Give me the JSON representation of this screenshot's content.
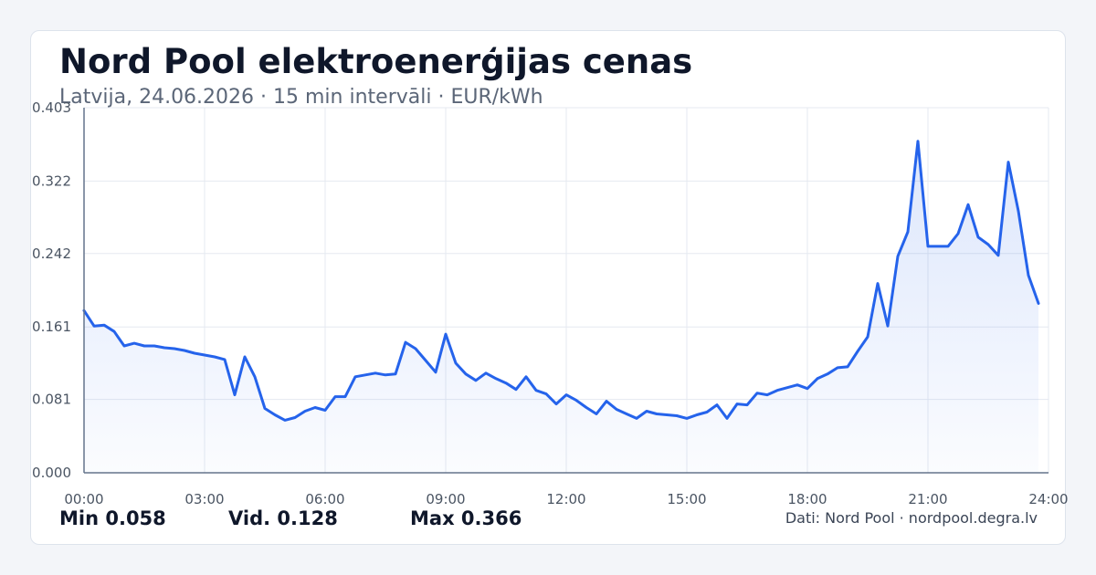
{
  "title": "Nord Pool elektroenerģijas cenas",
  "subtitle": "Latvija, 24.06.2026 · 15 min intervāli · EUR/kWh",
  "stats": {
    "min": "Min 0.058",
    "avg": "Vid. 0.128",
    "max": "Max 0.366"
  },
  "source": "Dati: Nord Pool · nordpool.degra.lv",
  "colors": {
    "line": "#2563eb",
    "fill_top": "#2563eb",
    "grid": "#e5e9f0",
    "axis": "#64748b",
    "tick_text": "#4b5563"
  },
  "chart_data": {
    "type": "area",
    "xlabel": "",
    "ylabel": "",
    "grid": true,
    "xlim": [
      0,
      24
    ],
    "ylim": [
      0,
      0.403
    ],
    "x_ticks": [
      0,
      3,
      6,
      9,
      12,
      15,
      18,
      21,
      24
    ],
    "x_tick_labels": [
      "00:00",
      "03:00",
      "06:00",
      "09:00",
      "12:00",
      "15:00",
      "18:00",
      "21:00",
      "24:00"
    ],
    "y_ticks": [
      0,
      0.081,
      0.161,
      0.242,
      0.322,
      0.403
    ],
    "y_tick_labels": [
      "0.000",
      "0.081",
      "0.161",
      "0.242",
      "0.322",
      "0.403"
    ],
    "series": [
      {
        "x": [
          0,
          0.25,
          0.5,
          0.75,
          1,
          1.25,
          1.5,
          1.75,
          2,
          2.25,
          2.5,
          2.75,
          3,
          3.25,
          3.5,
          3.75,
          4,
          4.25,
          4.5,
          4.75,
          5,
          5.25,
          5.5,
          5.75,
          6,
          6.25,
          6.5,
          6.75,
          7,
          7.25,
          7.5,
          7.75,
          8,
          8.25,
          8.5,
          8.75,
          9,
          9.25,
          9.5,
          9.75,
          10,
          10.25,
          10.5,
          10.75,
          11,
          11.25,
          11.5,
          11.75,
          12,
          12.25,
          12.5,
          12.75,
          13,
          13.25,
          13.5,
          13.75,
          14,
          14.25,
          14.5,
          14.75,
          15,
          15.25,
          15.5,
          15.75,
          16,
          16.25,
          16.5,
          16.75,
          17,
          17.25,
          17.5,
          17.75,
          18,
          18.25,
          18.5,
          18.75,
          19,
          19.25,
          19.5,
          19.75,
          20,
          20.25,
          20.5,
          20.75,
          21,
          21.25,
          21.5,
          21.75,
          22,
          22.25,
          22.5,
          22.75,
          23,
          23.25,
          23.5,
          23.75
        ],
        "values": [
          0.179,
          0.162,
          0.163,
          0.156,
          0.14,
          0.143,
          0.14,
          0.14,
          0.138,
          0.137,
          0.135,
          0.132,
          0.13,
          0.128,
          0.125,
          0.086,
          0.128,
          0.106,
          0.071,
          0.064,
          0.058,
          0.061,
          0.068,
          0.072,
          0.069,
          0.084,
          0.084,
          0.106,
          0.108,
          0.11,
          0.108,
          0.109,
          0.144,
          0.137,
          0.124,
          0.111,
          0.153,
          0.121,
          0.109,
          0.102,
          0.11,
          0.104,
          0.099,
          0.092,
          0.106,
          0.091,
          0.087,
          0.076,
          0.086,
          0.08,
          0.072,
          0.065,
          0.079,
          0.07,
          0.065,
          0.06,
          0.068,
          0.065,
          0.064,
          0.063,
          0.06,
          0.064,
          0.067,
          0.075,
          0.06,
          0.076,
          0.075,
          0.088,
          0.086,
          0.091,
          0.094,
          0.097,
          0.093,
          0.104,
          0.109,
          0.116,
          0.117,
          0.134,
          0.15,
          0.209,
          0.162,
          0.239,
          0.266,
          0.366,
          0.25,
          0.25,
          0.25,
          0.264,
          0.296,
          0.26,
          0.252,
          0.24,
          0.343,
          0.289,
          0.218,
          0.187
        ]
      }
    ]
  }
}
